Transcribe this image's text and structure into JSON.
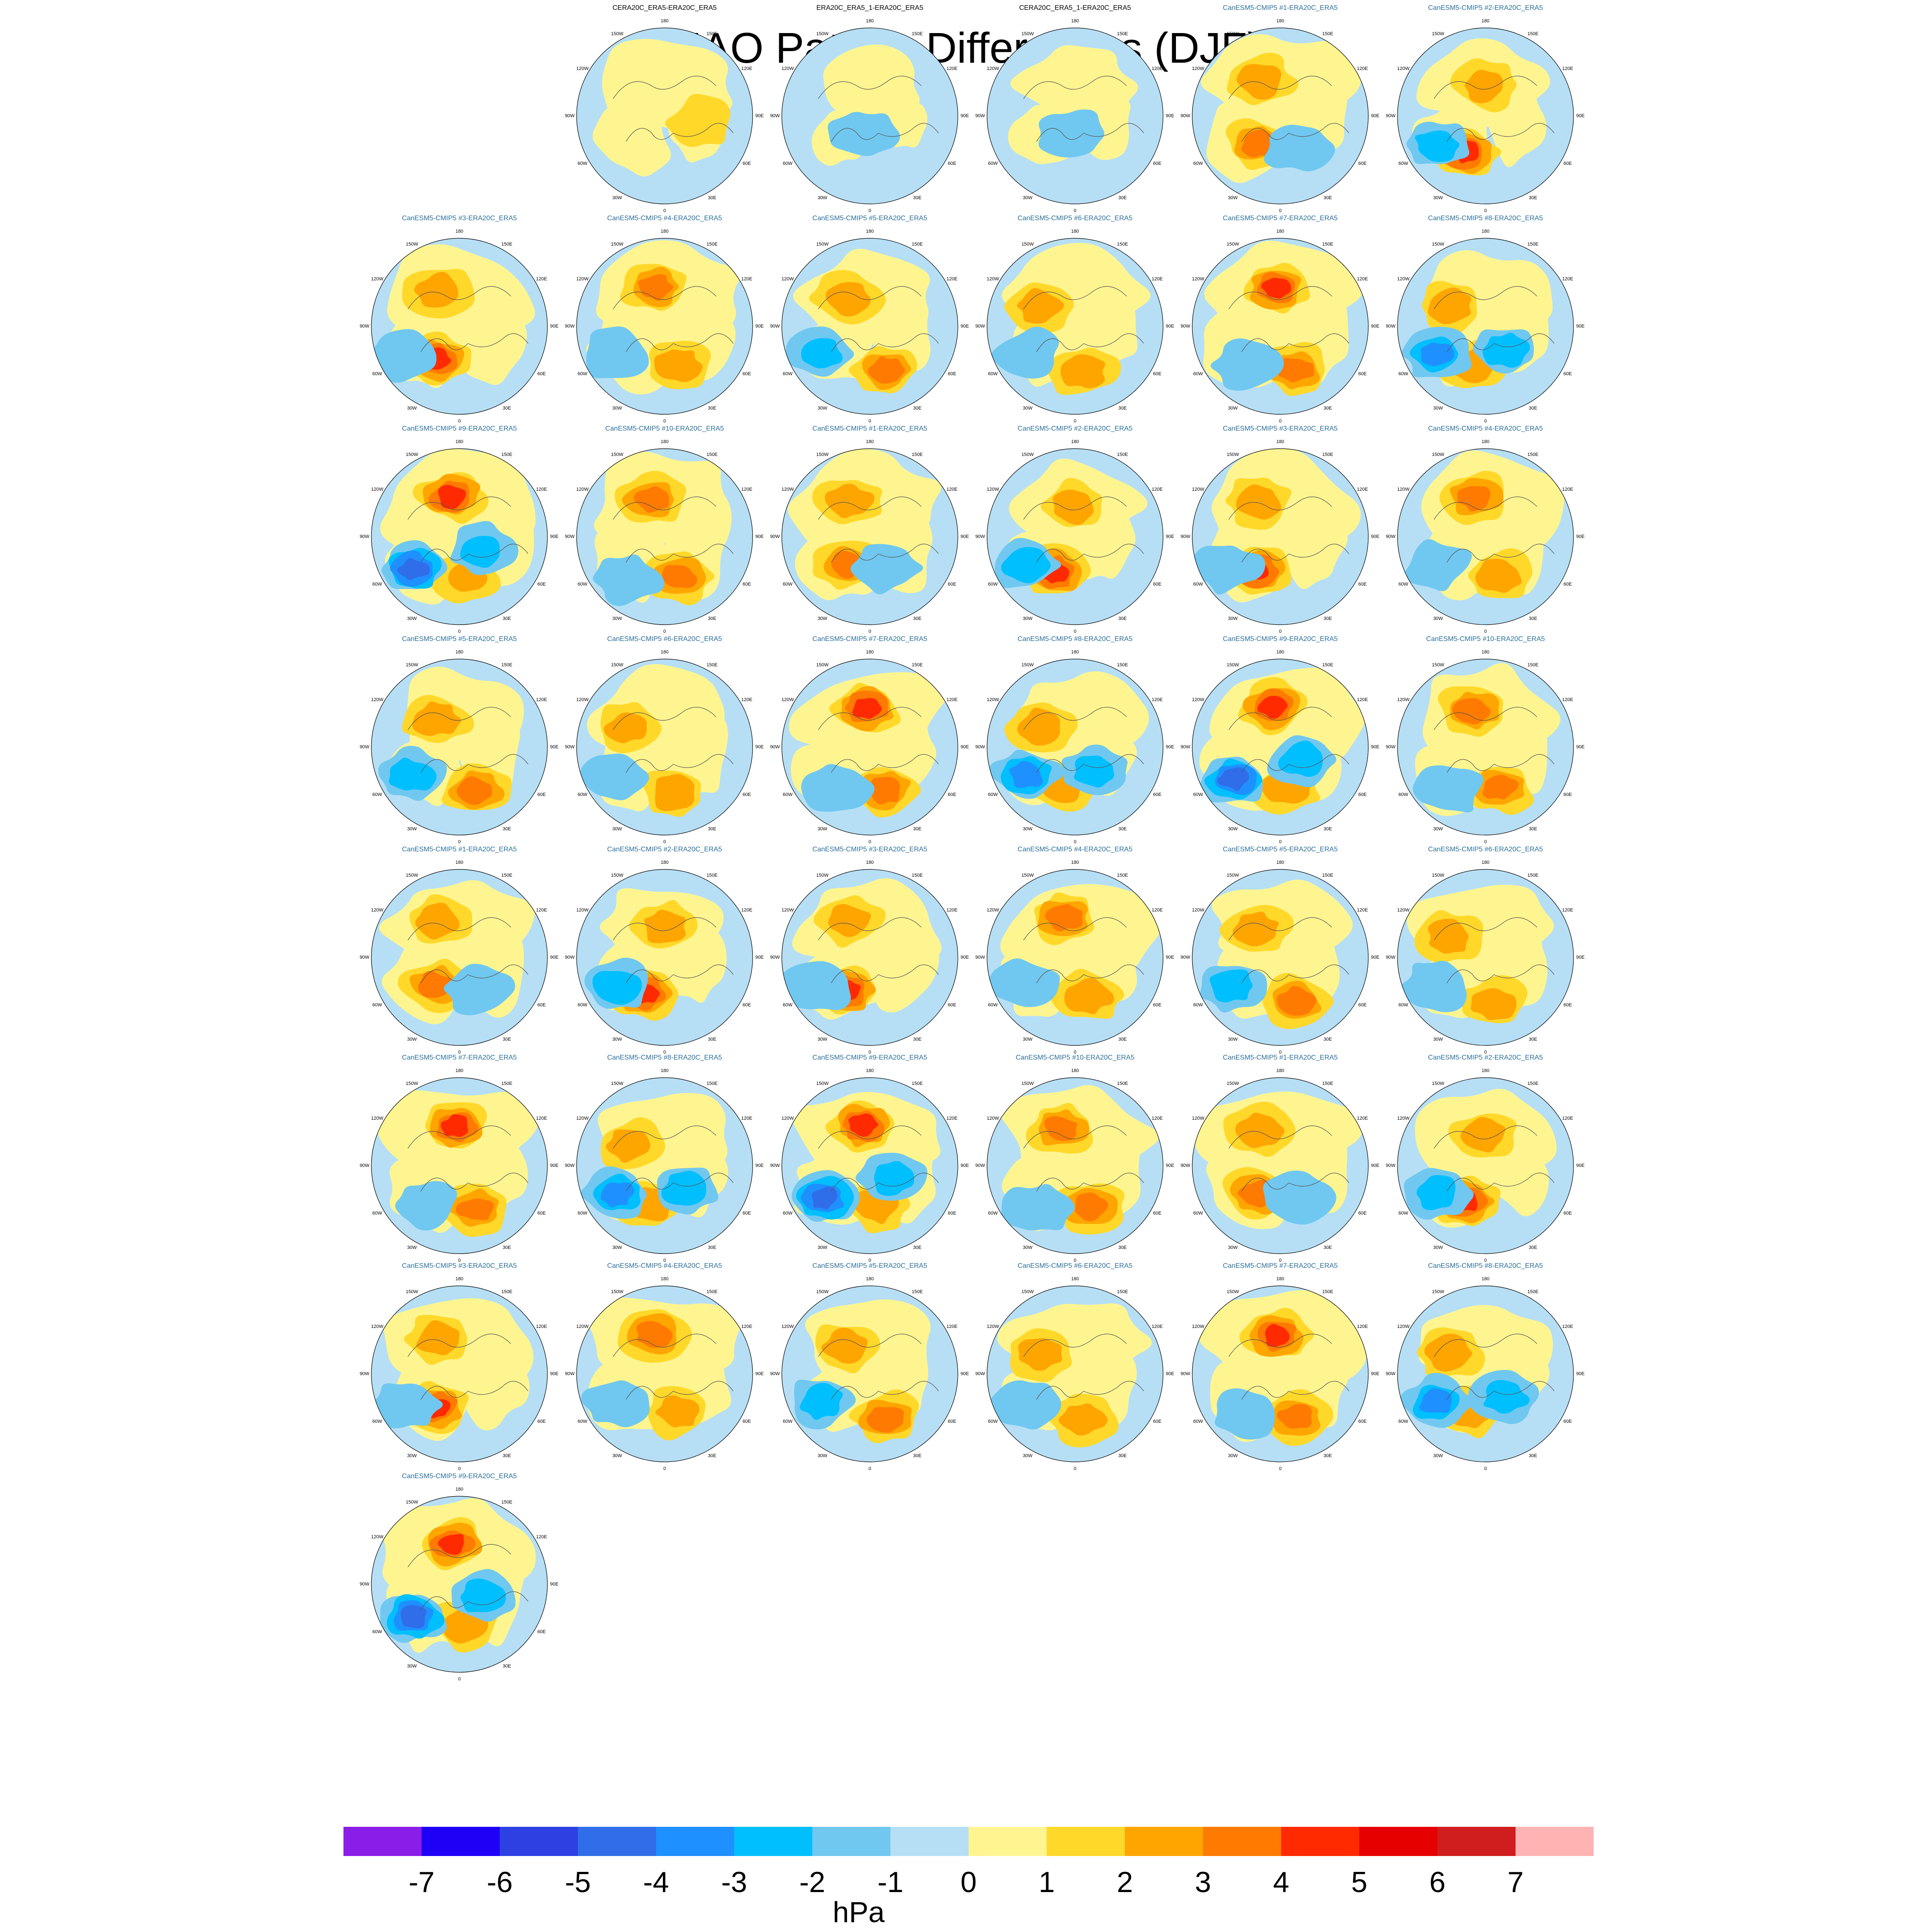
{
  "title": "NAO Pattern Differences (DJF)",
  "map_longitude_labels": [
    "180",
    "150E",
    "120E",
    "90E",
    "60E",
    "30E",
    "0",
    "30W",
    "60W",
    "90W",
    "120W",
    "150W"
  ],
  "colors": {
    "reference_title": "#000000",
    "model_title": "#2b6f9a",
    "ocean_zero": "#b6dff5",
    "coast": "#555555"
  },
  "chart_data": {
    "type": "heatmap",
    "projection": "north-polar-stereographic",
    "variable": "NAO pattern difference",
    "unit": "hPa",
    "levels": [
      -7,
      -6,
      -5,
      -4,
      -3,
      -2,
      -1,
      0,
      1,
      2,
      3,
      4,
      5,
      6,
      7
    ],
    "level_colors": [
      "#8b1de8",
      "#1d00f5",
      "#2d41e3",
      "#2f6ee8",
      "#1e90ff",
      "#00bfff",
      "#70c8f0",
      "#b6dff5",
      "#fff590",
      "#ffd82a",
      "#ffa500",
      "#ff7a00",
      "#ff2a00",
      "#e60000",
      "#d01d1d",
      "#ffb3b3"
    ],
    "colorbar_tick_labels": [
      "-7",
      "-6",
      "-5",
      "-4",
      "-3",
      "-2",
      "-1",
      "0",
      "1",
      "2",
      "3",
      "4",
      "5",
      "6",
      "7"
    ],
    "panels": [
      {
        "title": "CERA20C_ERA5-ERA20C_ERA5",
        "kind": "reference",
        "pattern": 0
      },
      {
        "title": "ERA20C_ERA5_1-ERA20C_ERA5",
        "kind": "reference",
        "pattern": 1
      },
      {
        "title": "CERA20C_ERA5_1-ERA20C_ERA5",
        "kind": "reference",
        "pattern": 2
      },
      {
        "title": "CanESM5-CMIP5 #1-ERA20C_ERA5",
        "kind": "model",
        "pattern": 3
      },
      {
        "title": "CanESM5-CMIP5 #2-ERA20C_ERA5",
        "kind": "model",
        "pattern": 4
      },
      {
        "title": "CanESM5-CMIP5 #3-ERA20C_ERA5",
        "kind": "model",
        "pattern": 5
      },
      {
        "title": "CanESM5-CMIP5 #4-ERA20C_ERA5",
        "kind": "model",
        "pattern": 6
      },
      {
        "title": "CanESM5-CMIP5 #5-ERA20C_ERA5",
        "kind": "model",
        "pattern": 7
      },
      {
        "title": "CanESM5-CMIP5 #6-ERA20C_ERA5",
        "kind": "model",
        "pattern": 8
      },
      {
        "title": "CanESM5-CMIP5 #7-ERA20C_ERA5",
        "kind": "model",
        "pattern": 9
      },
      {
        "title": "CanESM5-CMIP5 #8-ERA20C_ERA5",
        "kind": "model",
        "pattern": 10
      },
      {
        "title": "CanESM5-CMIP5 #9-ERA20C_ERA5",
        "kind": "model",
        "pattern": 11
      },
      {
        "title": "CanESM5-CMIP5 #10-ERA20C_ERA5",
        "kind": "model",
        "pattern": 12
      },
      {
        "title": "CanESM5-CMIP5 #1-ERA20C_ERA5",
        "kind": "model",
        "pattern": 3
      },
      {
        "title": "CanESM5-CMIP5 #2-ERA20C_ERA5",
        "kind": "model",
        "pattern": 4
      },
      {
        "title": "CanESM5-CMIP5 #3-ERA20C_ERA5",
        "kind": "model",
        "pattern": 5
      },
      {
        "title": "CanESM5-CMIP5 #4-ERA20C_ERA5",
        "kind": "model",
        "pattern": 6
      },
      {
        "title": "CanESM5-CMIP5 #5-ERA20C_ERA5",
        "kind": "model",
        "pattern": 7
      },
      {
        "title": "CanESM5-CMIP5 #6-ERA20C_ERA5",
        "kind": "model",
        "pattern": 8
      },
      {
        "title": "CanESM5-CMIP5 #7-ERA20C_ERA5",
        "kind": "model",
        "pattern": 9
      },
      {
        "title": "CanESM5-CMIP5 #8-ERA20C_ERA5",
        "kind": "model",
        "pattern": 10
      },
      {
        "title": "CanESM5-CMIP5 #9-ERA20C_ERA5",
        "kind": "model",
        "pattern": 11
      },
      {
        "title": "CanESM5-CMIP5 #10-ERA20C_ERA5",
        "kind": "model",
        "pattern": 12
      },
      {
        "title": "CanESM5-CMIP5 #1-ERA20C_ERA5",
        "kind": "model",
        "pattern": 3
      },
      {
        "title": "CanESM5-CMIP5 #2-ERA20C_ERA5",
        "kind": "model",
        "pattern": 4
      },
      {
        "title": "CanESM5-CMIP5 #3-ERA20C_ERA5",
        "kind": "model",
        "pattern": 5
      },
      {
        "title": "CanESM5-CMIP5 #4-ERA20C_ERA5",
        "kind": "model",
        "pattern": 6
      },
      {
        "title": "CanESM5-CMIP5 #5-ERA20C_ERA5",
        "kind": "model",
        "pattern": 7
      },
      {
        "title": "CanESM5-CMIP5 #6-ERA20C_ERA5",
        "kind": "model",
        "pattern": 8
      },
      {
        "title": "CanESM5-CMIP5 #7-ERA20C_ERA5",
        "kind": "model",
        "pattern": 9
      },
      {
        "title": "CanESM5-CMIP5 #8-ERA20C_ERA5",
        "kind": "model",
        "pattern": 10
      },
      {
        "title": "CanESM5-CMIP5 #9-ERA20C_ERA5",
        "kind": "model",
        "pattern": 11
      },
      {
        "title": "CanESM5-CMIP5 #10-ERA20C_ERA5",
        "kind": "model",
        "pattern": 12
      },
      {
        "title": "CanESM5-CMIP5 #1-ERA20C_ERA5",
        "kind": "model",
        "pattern": 3
      },
      {
        "title": "CanESM5-CMIP5 #2-ERA20C_ERA5",
        "kind": "model",
        "pattern": 4
      },
      {
        "title": "CanESM5-CMIP5 #3-ERA20C_ERA5",
        "kind": "model",
        "pattern": 5
      },
      {
        "title": "CanESM5-CMIP5 #4-ERA20C_ERA5",
        "kind": "model",
        "pattern": 6
      },
      {
        "title": "CanESM5-CMIP5 #5-ERA20C_ERA5",
        "kind": "model",
        "pattern": 7
      },
      {
        "title": "CanESM5-CMIP5 #6-ERA20C_ERA5",
        "kind": "model",
        "pattern": 8
      },
      {
        "title": "CanESM5-CMIP5 #7-ERA20C_ERA5",
        "kind": "model",
        "pattern": 9
      },
      {
        "title": "CanESM5-CMIP5 #8-ERA20C_ERA5",
        "kind": "model",
        "pattern": 10
      },
      {
        "title": "CanESM5-CMIP5 #9-ERA20C_ERA5",
        "kind": "model",
        "pattern": 11
      }
    ],
    "patterns": [
      {
        "yellow_fraction": 0.62,
        "blobs": [
          {
            "lon": 80,
            "lat": 55,
            "level": 1
          }
        ]
      },
      {
        "yellow_fraction": 0.45,
        "blobs": [
          {
            "lon": -20,
            "lat": 70,
            "level": -1
          }
        ]
      },
      {
        "yellow_fraction": 0.5,
        "blobs": [
          {
            "lon": -10,
            "lat": 72,
            "level": -1
          }
        ]
      },
      {
        "yellow_fraction": 0.72,
        "blobs": [
          {
            "lon": -40,
            "lat": 55,
            "level": 3
          },
          {
            "lon": -150,
            "lat": 50,
            "level": 2
          },
          {
            "lon": 30,
            "lat": 55,
            "level": -1
          }
        ]
      },
      {
        "yellow_fraction": 0.6,
        "blobs": [
          {
            "lon": -30,
            "lat": 50,
            "level": 4
          },
          {
            "lon": 180,
            "lat": 60,
            "level": 2
          },
          {
            "lon": -60,
            "lat": 35,
            "level": -2
          }
        ]
      },
      {
        "yellow_fraction": 0.7,
        "blobs": [
          {
            "lon": -35,
            "lat": 50,
            "level": 4
          },
          {
            "lon": -150,
            "lat": 50,
            "level": 2
          },
          {
            "lon": -60,
            "lat": 30,
            "level": -1
          }
        ]
      },
      {
        "yellow_fraction": 0.72,
        "blobs": [
          {
            "lon": -165,
            "lat": 50,
            "level": 3
          },
          {
            "lon": 20,
            "lat": 50,
            "level": 2
          },
          {
            "lon": -60,
            "lat": 35,
            "level": -1
          }
        ]
      },
      {
        "yellow_fraction": 0.62,
        "blobs": [
          {
            "lon": -140,
            "lat": 55,
            "level": 2
          },
          {
            "lon": 20,
            "lat": 45,
            "level": 3
          },
          {
            "lon": -60,
            "lat": 35,
            "level": -2
          }
        ]
      },
      {
        "yellow_fraction": 0.64,
        "blobs": [
          {
            "lon": -120,
            "lat": 50,
            "level": 2
          },
          {
            "lon": 10,
            "lat": 45,
            "level": 2
          },
          {
            "lon": -60,
            "lat": 35,
            "level": -1
          }
        ]
      },
      {
        "yellow_fraction": 0.74,
        "blobs": [
          {
            "lon": -175,
            "lat": 52,
            "level": 4
          },
          {
            "lon": 20,
            "lat": 45,
            "level": 3
          },
          {
            "lon": -40,
            "lat": 40,
            "level": -1
          }
        ]
      },
      {
        "yellow_fraction": 0.58,
        "blobs": [
          {
            "lon": -120,
            "lat": 50,
            "level": 2
          },
          {
            "lon": -20,
            "lat": 50,
            "level": 2
          },
          {
            "lon": -60,
            "lat": 35,
            "level": -3
          },
          {
            "lon": 40,
            "lat": 60,
            "level": -2
          }
        ]
      },
      {
        "yellow_fraction": 0.76,
        "blobs": [
          {
            "lon": -170,
            "lat": 50,
            "level": 4
          },
          {
            "lon": 10,
            "lat": 50,
            "level": 2
          },
          {
            "lon": -55,
            "lat": 35,
            "level": -4
          },
          {
            "lon": 60,
            "lat": 65,
            "level": -2
          }
        ]
      },
      {
        "yellow_fraction": 0.72,
        "blobs": [
          {
            "lon": -160,
            "lat": 52,
            "level": 3
          },
          {
            "lon": 20,
            "lat": 48,
            "level": 3
          },
          {
            "lon": -40,
            "lat": 35,
            "level": -1
          }
        ]
      }
    ]
  },
  "colorbar": {
    "tick_labels": [
      "-7",
      "-6",
      "-5",
      "-4",
      "-3",
      "-2",
      "-1",
      "0",
      "1",
      "2",
      "3",
      "4",
      "5",
      "6",
      "7"
    ],
    "unit_label": "hPa"
  }
}
